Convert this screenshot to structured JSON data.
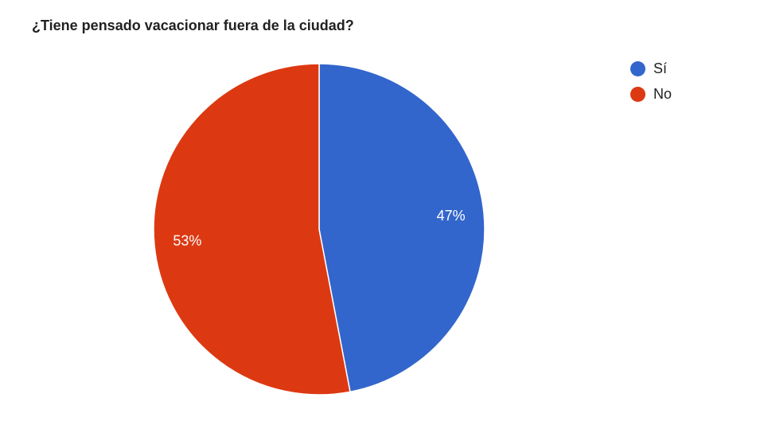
{
  "chart_data": {
    "type": "pie",
    "title": "¿Tiene pensado vacacionar fuera de la ciudad?",
    "categories": [
      "Sí",
      "No"
    ],
    "values": [
      47,
      53
    ],
    "data_labels": [
      "47%",
      "53%"
    ],
    "colors": [
      "#3366cc",
      "#dc3912"
    ],
    "legend_position": "top-right"
  }
}
